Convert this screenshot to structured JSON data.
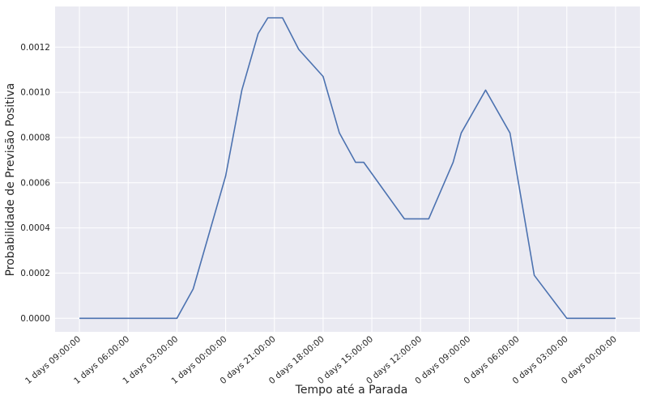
{
  "chart_data": {
    "type": "line",
    "title": "",
    "xlabel": "Tempo até a Parada",
    "ylabel": "Probabilidade de Previsão Positiva",
    "x_tick_labels": [
      "1 days 09:00:00",
      "1 days 06:00:00",
      "1 days 03:00:00",
      "1 days 00:00:00",
      "0 days 21:00:00",
      "0 days 18:00:00",
      "0 days 15:00:00",
      "0 days 12:00:00",
      "0 days 09:00:00",
      "0 days 06:00:00",
      "0 days 03:00:00",
      "0 days 00:00:00"
    ],
    "y_ticks": [
      0.0,
      0.0002,
      0.0004,
      0.0006,
      0.0008,
      0.001,
      0.0012
    ],
    "y_tick_labels": [
      "0.0000",
      "0.0002",
      "0.0004",
      "0.0006",
      "0.0008",
      "0.0010",
      "0.0012"
    ],
    "ylim": [
      -6e-05,
      0.00138
    ],
    "x_unit": "hours until stop",
    "xlim": [
      34.5,
      -1.5
    ],
    "grid": true,
    "series": [
      {
        "color": "#4c72b0",
        "x": [
          33,
          27,
          26,
          24,
          23,
          22,
          21.4,
          20.5,
          19.5,
          18,
          17,
          16,
          15.5,
          13,
          11.5,
          10,
          9.5,
          8,
          6.5,
          5,
          3,
          0
        ],
        "y": [
          0.0,
          0.0,
          0.00013,
          0.00063,
          0.00101,
          0.00126,
          0.00133,
          0.00133,
          0.00119,
          0.00107,
          0.00082,
          0.00069,
          0.00069,
          0.00044,
          0.00044,
          0.00069,
          0.00082,
          0.00101,
          0.00082,
          0.00019,
          0.0,
          0.0
        ]
      }
    ]
  }
}
